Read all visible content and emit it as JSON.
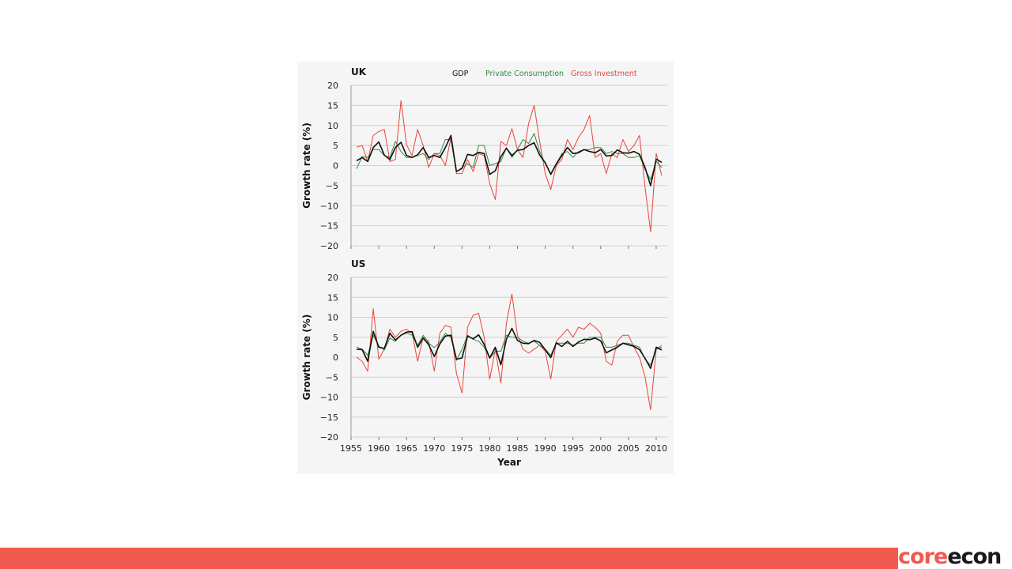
{
  "brand": {
    "part1": "core",
    "part2": "econ"
  },
  "colors": {
    "gdp": "#111111",
    "consumption": "#2e8b3e",
    "investment": "#e8453c",
    "grid": "#cfcfcf",
    "footer": "#f05a4f"
  },
  "legend": [
    "GDP",
    "Private Consumption",
    "Gross Investment"
  ],
  "chart_data": [
    {
      "type": "line",
      "title": "UK",
      "xlabel": "",
      "ylabel": "Growth rate (%)",
      "ylim": [
        -20,
        20
      ],
      "yticks": [
        20,
        15,
        10,
        5,
        0,
        -5,
        -10,
        -15,
        -20
      ],
      "xlim": [
        1955,
        2012
      ],
      "grid": true,
      "legend_position": "top",
      "x": [
        1956,
        1957,
        1958,
        1959,
        1960,
        1961,
        1962,
        1963,
        1964,
        1965,
        1966,
        1967,
        1968,
        1969,
        1970,
        1971,
        1972,
        1973,
        1974,
        1975,
        1976,
        1977,
        1978,
        1979,
        1980,
        1981,
        1982,
        1983,
        1984,
        1985,
        1986,
        1987,
        1988,
        1989,
        1990,
        1991,
        1992,
        1993,
        1994,
        1995,
        1996,
        1997,
        1998,
        1999,
        2000,
        2001,
        2002,
        2003,
        2004,
        2005,
        2006,
        2007,
        2008,
        2009,
        2010,
        2011
      ],
      "series": [
        {
          "name": "GDP",
          "values": [
            1.2,
            2.0,
            1.0,
            4.5,
            5.9,
            2.6,
            1.5,
            4.5,
            5.8,
            2.5,
            2.0,
            2.7,
            4.5,
            2.0,
            2.5,
            2.0,
            4.5,
            7.5,
            -1.5,
            -0.7,
            2.8,
            2.5,
            3.3,
            3.0,
            -2.2,
            -1.3,
            2.2,
            4.3,
            2.5,
            3.8,
            4.0,
            5.0,
            5.7,
            2.6,
            0.7,
            -2.2,
            0.4,
            2.5,
            4.5,
            3.0,
            3.2,
            4.0,
            3.5,
            3.2,
            4.0,
            2.4,
            2.5,
            3.9,
            3.2,
            3.1,
            3.5,
            2.8,
            -0.5,
            -5.0,
            1.6,
            0.8
          ]
        },
        {
          "name": "Private Consumption",
          "values": [
            -0.8,
            2.2,
            2.0,
            4.0,
            4.0,
            2.5,
            2.0,
            6.0,
            3.5,
            2.0,
            2.0,
            2.5,
            3.0,
            1.5,
            3.0,
            3.0,
            6.5,
            6.5,
            -1.5,
            -0.5,
            0.5,
            -0.5,
            5.0,
            5.0,
            0.0,
            0.5,
            1.0,
            4.5,
            2.0,
            4.0,
            6.5,
            5.5,
            8.0,
            3.5,
            0.5,
            -2.0,
            0.5,
            3.0,
            3.5,
            2.0,
            3.5,
            4.0,
            4.0,
            4.5,
            4.5,
            3.0,
            3.5,
            3.0,
            3.0,
            2.0,
            2.0,
            2.5,
            -1.0,
            -3.5,
            1.0,
            -0.5
          ]
        },
        {
          "name": "Gross Investment",
          "values": [
            4.6,
            5.0,
            1.0,
            7.5,
            8.5,
            9.0,
            1.0,
            1.5,
            16.2,
            5.2,
            2.5,
            9.0,
            5.0,
            -0.5,
            3.0,
            2.5,
            0.0,
            7.0,
            -2.0,
            -2.0,
            1.5,
            -1.5,
            3.0,
            2.5,
            -4.5,
            -8.5,
            6.0,
            5.0,
            9.2,
            4.0,
            2.0,
            10.5,
            15.0,
            6.0,
            -2.0,
            -6.0,
            0.0,
            1.5,
            6.5,
            4.0,
            7.0,
            9.0,
            12.5,
            2.0,
            3.0,
            -2.0,
            3.0,
            2.0,
            6.5,
            3.5,
            5.0,
            7.5,
            -5.5,
            -16.5,
            3.0,
            -2.5
          ]
        }
      ]
    },
    {
      "type": "line",
      "title": "US",
      "xlabel": "Year",
      "ylabel": "Growth rate (%)",
      "ylim": [
        -20,
        20
      ],
      "yticks": [
        20,
        15,
        10,
        5,
        0,
        -5,
        -10,
        -15,
        -20
      ],
      "xlim": [
        1955,
        2012
      ],
      "xticks": [
        1955,
        1960,
        1965,
        1970,
        1975,
        1980,
        1985,
        1990,
        1995,
        2000,
        2005,
        2010
      ],
      "grid": true,
      "x": [
        1956,
        1957,
        1958,
        1959,
        1960,
        1961,
        1962,
        1963,
        1964,
        1965,
        1966,
        1967,
        1968,
        1969,
        1970,
        1971,
        1972,
        1973,
        1974,
        1975,
        1976,
        1977,
        1978,
        1979,
        1980,
        1981,
        1982,
        1983,
        1984,
        1985,
        1986,
        1987,
        1988,
        1989,
        1990,
        1991,
        1992,
        1993,
        1994,
        1995,
        1996,
        1997,
        1998,
        1999,
        2000,
        2001,
        2002,
        2003,
        2004,
        2005,
        2006,
        2007,
        2008,
        2009,
        2010,
        2011
      ],
      "series": [
        {
          "name": "GDP",
          "values": [
            2.0,
            1.9,
            -1.0,
            6.5,
            2.5,
            2.2,
            6.0,
            4.3,
            5.5,
            6.3,
            6.4,
            2.5,
            4.8,
            3.1,
            0.2,
            3.3,
            5.3,
            5.5,
            -0.5,
            -0.2,
            5.3,
            4.6,
            5.6,
            3.2,
            -0.2,
            2.5,
            -1.9,
            4.5,
            7.2,
            4.2,
            3.5,
            3.4,
            4.2,
            3.7,
            1.9,
            -0.1,
            3.6,
            2.7,
            4.0,
            2.7,
            3.8,
            4.5,
            4.4,
            4.8,
            4.1,
            1.1,
            1.8,
            2.5,
            3.5,
            3.1,
            2.7,
            1.9,
            -0.3,
            -2.8,
            2.5,
            1.8
          ]
        },
        {
          "name": "Private Consumption",
          "values": [
            2.6,
            2.0,
            0.5,
            5.5,
            2.8,
            1.8,
            4.8,
            4.0,
            5.5,
            6.0,
            5.5,
            3.0,
            5.5,
            3.5,
            2.4,
            3.8,
            6.0,
            5.0,
            -0.8,
            2.0,
            5.5,
            4.5,
            4.0,
            2.5,
            -0.3,
            1.5,
            1.5,
            5.5,
            5.0,
            5.0,
            4.0,
            3.5,
            4.0,
            3.0,
            2.0,
            0.5,
            3.5,
            3.5,
            3.5,
            3.0,
            3.5,
            3.5,
            5.0,
            5.0,
            5.0,
            2.5,
            2.5,
            3.0,
            3.5,
            3.5,
            3.0,
            2.5,
            -0.5,
            -2.0,
            2.0,
            2.5
          ]
        },
        {
          "name": "Gross Investment",
          "values": [
            0.0,
            -1.0,
            -3.5,
            12.2,
            -0.5,
            2.0,
            7.0,
            5.0,
            6.5,
            7.0,
            6.0,
            -1.0,
            5.0,
            4.0,
            -3.5,
            6.0,
            8.0,
            7.5,
            -4.0,
            -9.0,
            7.5,
            10.5,
            11.0,
            5.0,
            -5.5,
            2.0,
            -6.5,
            8.5,
            15.8,
            5.5,
            2.0,
            1.0,
            2.0,
            3.0,
            1.5,
            -5.5,
            4.0,
            5.5,
            7.0,
            5.0,
            7.5,
            7.0,
            8.5,
            7.5,
            6.0,
            -1.0,
            -2.0,
            4.0,
            5.5,
            5.5,
            2.5,
            0.0,
            -5.0,
            -13.2,
            2.0,
            3.0
          ]
        }
      ]
    }
  ]
}
